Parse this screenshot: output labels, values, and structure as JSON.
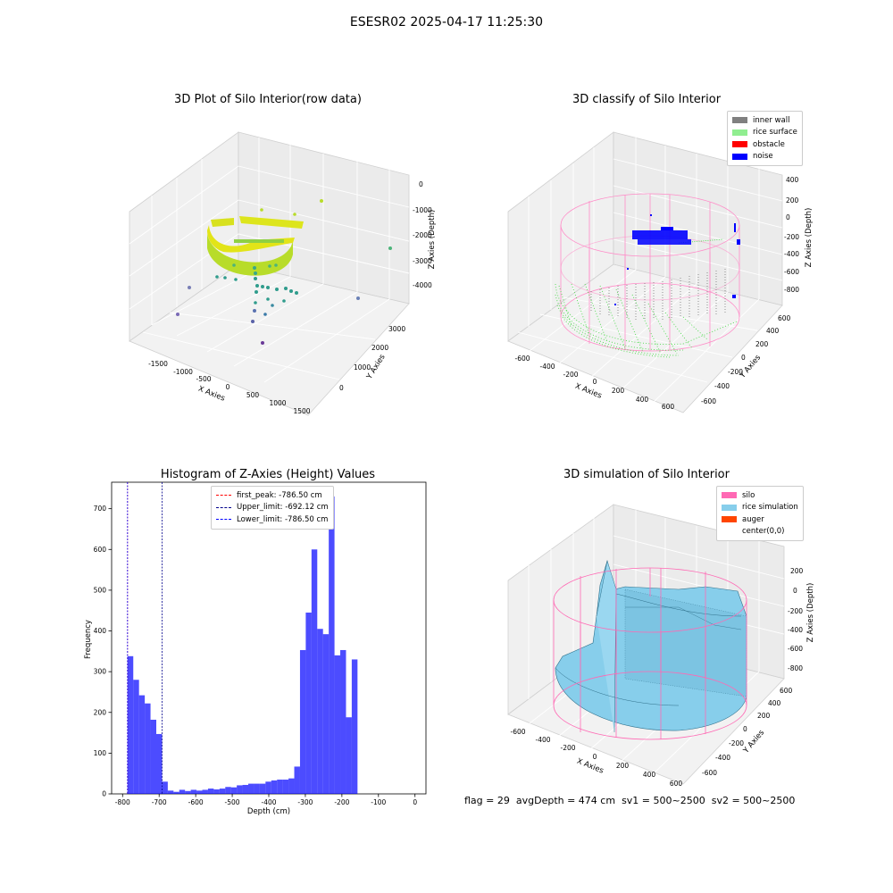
{
  "figure": {
    "title": "ESESR02 2025-04-17 11:25:30"
  },
  "footer": {
    "flag": "flag = 29",
    "avg_depth": "avgDepth = 474 cm",
    "sv1": "sv1 = 500~2500",
    "sv2": "sv2 = 500~2500"
  },
  "plots": {
    "raw": {
      "title": "3D Plot of Silo Interior(row data)",
      "xlabel": "X Axies",
      "ylabel": "Y Axies",
      "zlabel": "Z Axies (Depth)",
      "xticks": [
        "-1500",
        "-1000",
        "-500",
        "0",
        "500",
        "1000",
        "1500"
      ],
      "yticks": [
        "0",
        "1000",
        "2000",
        "3000"
      ],
      "zticks": [
        "0",
        "-1000",
        "-2000",
        "-3000",
        "-4000"
      ]
    },
    "classify": {
      "title": "3D classify of Silo Interior",
      "xlabel": "X Axies",
      "ylabel": "Y Axies",
      "zlabel": "Z Axies (Depth)",
      "xticks": [
        "-600",
        "-400",
        "-200",
        "0",
        "200",
        "400",
        "600"
      ],
      "yticks": [
        "-600",
        "-400",
        "-200",
        "0",
        "200",
        "400",
        "600"
      ],
      "zticks": [
        "400",
        "200",
        "0",
        "-200",
        "-400",
        "-600",
        "-800"
      ],
      "legend": [
        {
          "label": "inner wall",
          "color": "#808080"
        },
        {
          "label": "rice surface",
          "color": "#90ee90"
        },
        {
          "label": "obstacle",
          "color": "#ff0000"
        },
        {
          "label": "noise",
          "color": "#0000ff"
        }
      ]
    },
    "simulation": {
      "title": "3D simulation of Silo Interior",
      "xlabel": "X Axies",
      "ylabel": "Y Axies",
      "zlabel": "Z Axies (Depth)",
      "xticks": [
        "-600",
        "-400",
        "-200",
        "0",
        "200",
        "400",
        "600"
      ],
      "yticks": [
        "-600",
        "-400",
        "-200",
        "0",
        "200",
        "400",
        "600"
      ],
      "zticks": [
        "200",
        "0",
        "-200",
        "-400",
        "-600",
        "-800"
      ],
      "legend": [
        {
          "label": "silo",
          "color": "#ff69b4"
        },
        {
          "label": "rice simulation",
          "color": "#87ceeb"
        },
        {
          "label": "auger",
          "color": "#ff4500"
        },
        {
          "label": "center(0,0)",
          "color": "#ffffff"
        }
      ]
    }
  },
  "chart_data": {
    "type": "bar",
    "title": "Histogram of Z-Axies (Height) Values",
    "xlabel": "Depth (cm)",
    "ylabel": "Frequency",
    "xlim": [
      -830,
      30
    ],
    "ylim": [
      0,
      765
    ],
    "xticks": [
      -800,
      -700,
      -600,
      -500,
      -400,
      -300,
      -200,
      -100,
      0
    ],
    "yticks": [
      0,
      100,
      200,
      300,
      400,
      500,
      600,
      700
    ],
    "bar_color": "#0000ff",
    "bins": {
      "start": -786.5,
      "width": 15.73,
      "values": [
        338,
        280,
        242,
        222,
        182,
        147,
        30,
        8,
        5,
        10,
        7,
        10,
        8,
        10,
        13,
        11,
        13,
        17,
        16,
        21,
        22,
        25,
        25,
        25,
        30,
        33,
        35,
        35,
        38,
        67,
        353,
        445,
        600,
        405,
        392,
        730,
        340,
        353,
        188,
        330
      ]
    },
    "lines": [
      {
        "label": "first_peak: -786.50 cm",
        "x": -786.5,
        "color": "#ff0000"
      },
      {
        "label": "Upper_limit: -692.12 cm",
        "x": -692.12,
        "color": "#00008b"
      },
      {
        "label": "Lower_limit: -786.50 cm",
        "x": -786.5,
        "color": "#0000ff"
      }
    ],
    "legend_position": "top-center"
  }
}
